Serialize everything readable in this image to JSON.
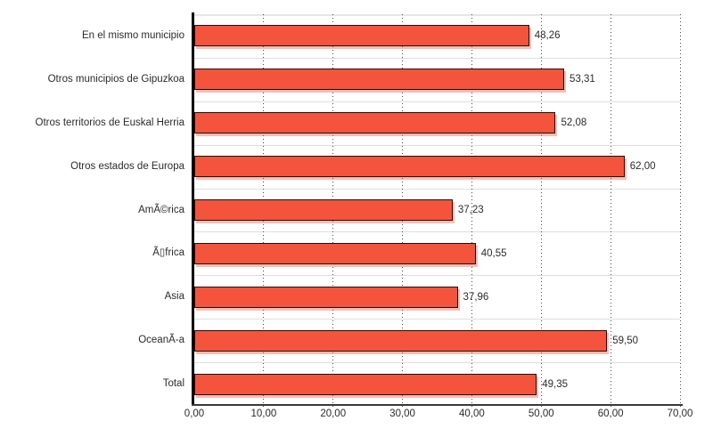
{
  "chart_data": {
    "type": "bar",
    "orientation": "horizontal",
    "categories": [
      "En el mismo municipio",
      "Otros municipios de Gipuzkoa",
      "Otros territorios de Euskal Herria",
      "Otros estados de Europa",
      "AmÃ©rica",
      "Ã▯frica",
      "Asia",
      "OceanÃ-a",
      "Total"
    ],
    "values": [
      48.26,
      53.31,
      52.08,
      62.0,
      37.23,
      40.55,
      37.96,
      59.5,
      49.35
    ],
    "value_labels": [
      "48,26",
      "53,31",
      "52,08",
      "62,00",
      "37,23",
      "40,55",
      "37,96",
      "59,50",
      "49,35"
    ],
    "x_ticks": [
      0,
      10,
      20,
      30,
      40,
      50,
      60,
      70
    ],
    "x_tick_labels": [
      "0,00",
      "10,00",
      "20,00",
      "30,00",
      "40,00",
      "50,00",
      "60,00",
      "70,00"
    ],
    "xlim": [
      0,
      70
    ],
    "title": "",
    "xlabel": "",
    "ylabel": "",
    "grid": "vertical-dotted",
    "legend_position": "none",
    "colors": {
      "bar_fill": "#F5543C",
      "bar_border": "#141414",
      "bar_shadow": "rgba(244,84,60,0.40)",
      "gridline_dot": "#4a4a4a",
      "separator_line": "#dedede",
      "y_axis": "#000000",
      "x_axis": "#3a3a3a",
      "text": "#2b2b2b",
      "background": "#ffffff"
    }
  }
}
